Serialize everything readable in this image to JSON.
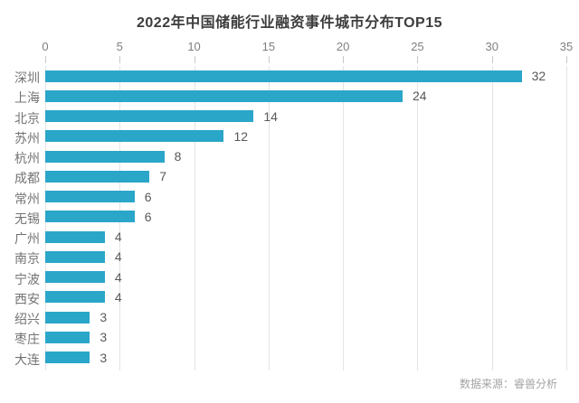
{
  "page": {
    "source_note": "数据来源：睿兽分析"
  },
  "colors": {
    "bar": "#2AA6C9",
    "title_text": "#3d3d3d",
    "axis_text": "#7f7f7f",
    "category_text": "#737373",
    "value_text": "#595959",
    "gridline": "#e4e4e4",
    "tick": "#c8c8c8",
    "source_text": "#a3a3a3",
    "background": "#ffffff"
  },
  "chart_data": {
    "type": "bar",
    "orientation": "horizontal",
    "title": "2022年中国储能行业融资事件城市分布TOP15",
    "categories": [
      "深圳",
      "上海",
      "北京",
      "苏州",
      "杭州",
      "成都",
      "常州",
      "无锡",
      "广州",
      "南京",
      "宁波",
      "西安",
      "绍兴",
      "枣庄",
      "大连"
    ],
    "values": [
      32,
      24,
      14,
      12,
      8,
      7,
      6,
      6,
      4,
      4,
      4,
      4,
      3,
      3,
      3
    ],
    "xlabel": "",
    "ylabel": "",
    "xlim": [
      0,
      35
    ],
    "xticks": [
      0,
      5,
      10,
      15,
      20,
      25,
      30,
      35
    ],
    "grid": "vertical",
    "axis_position": "top",
    "value_labels": true,
    "legend": "none"
  }
}
